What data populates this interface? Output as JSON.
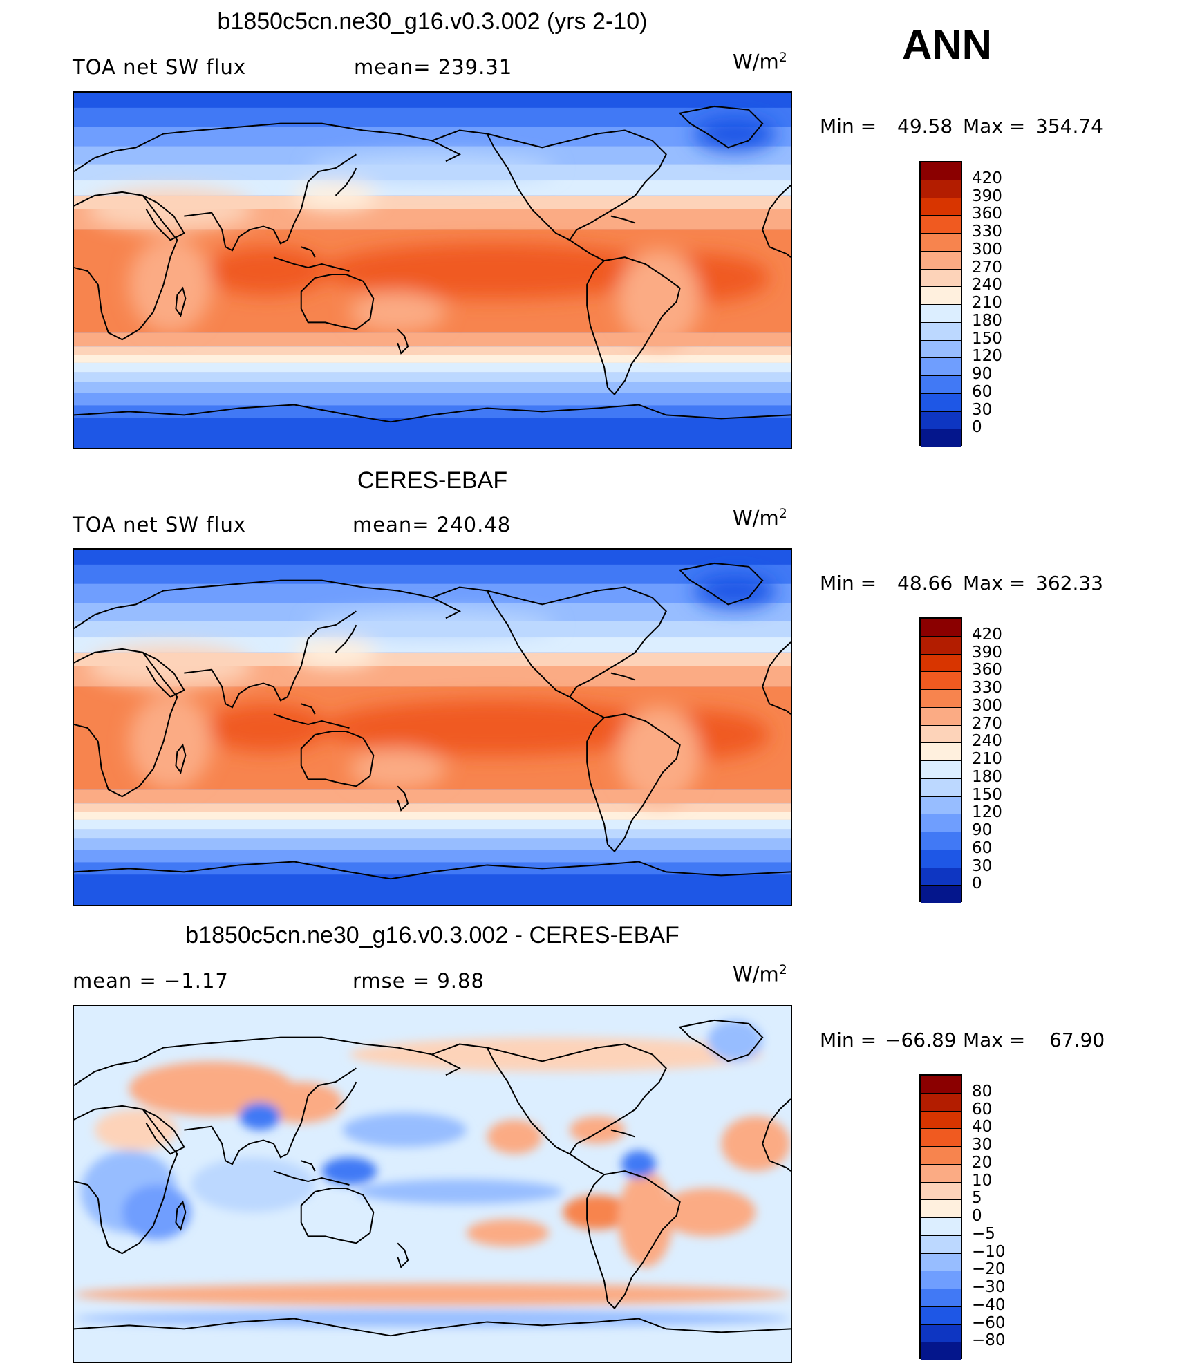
{
  "season": "ANN",
  "units_base": "W/m",
  "units_sup": "2",
  "colors_abs": [
    "#8b0000",
    "#b31d00",
    "#d83500",
    "#f05a20",
    "#f7844e",
    "#fbab84",
    "#fdd3b9",
    "#fff0de",
    "#dceeff",
    "#bcd8ff",
    "#97bdff",
    "#6f9efe",
    "#4179f5",
    "#1e57e6",
    "#0e36c2",
    "#04168c"
  ],
  "colors_diff": [
    "#8b0000",
    "#b31d00",
    "#d83500",
    "#f05a20",
    "#f7844e",
    "#fbab84",
    "#fdd3b9",
    "#fff0de",
    "#dceeff",
    "#bcd8ff",
    "#97bdff",
    "#6f9efe",
    "#4179f5",
    "#1e57e6",
    "#0e36c2",
    "#04168c"
  ],
  "panels": [
    {
      "title": "b1850c5cn.ne30_g16.v0.3.002 (yrs 2-10)",
      "left_label": "TOA net SW flux",
      "center_label": "mean= 239.31",
      "min_label": "Min  =",
      "min_value": "49.58",
      "max_label": "Max  =",
      "max_value": "354.74",
      "ticks": [
        "420",
        "390",
        "360",
        "330",
        "300",
        "270",
        "240",
        "210",
        "180",
        "150",
        "120",
        "90",
        "60",
        "30",
        "0"
      ]
    },
    {
      "title": "CERES-EBAF",
      "left_label": "TOA net SW flux",
      "center_label": "mean= 240.48",
      "min_label": "Min  =",
      "min_value": "48.66",
      "max_label": "Max  =",
      "max_value": "362.33",
      "ticks": [
        "420",
        "390",
        "360",
        "330",
        "300",
        "270",
        "240",
        "210",
        "180",
        "150",
        "120",
        "90",
        "60",
        "30",
        "0"
      ]
    },
    {
      "title": "b1850c5cn.ne30_g16.v0.3.002 - CERES-EBAF",
      "left_label": "mean  =    −1.17",
      "center_label": "rmse  =     9.88",
      "min_label": "Min  =",
      "min_value": "−66.89",
      "max_label": "Max  =",
      "max_value": "67.90",
      "ticks": [
        "80",
        "60",
        "40",
        "30",
        "20",
        "10",
        "5",
        "0",
        "−5",
        "−10",
        "−20",
        "−30",
        "−40",
        "−60",
        "−80"
      ]
    }
  ]
}
